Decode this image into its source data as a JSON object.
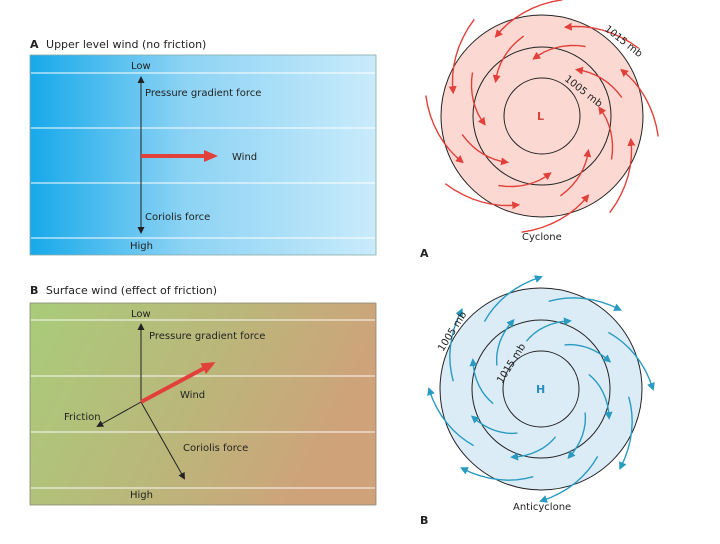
{
  "panelA": {
    "letter": "A",
    "title": "Upper level wind (no friction)",
    "low": "Low",
    "high": "High",
    "pgf": "Pressure gradient force",
    "wind": "Wind",
    "coriolis": "Coriolis force"
  },
  "panelB": {
    "letter": "B",
    "title": "Surface wind (effect of friction)",
    "low": "Low",
    "high": "High",
    "pgf": "Pressure gradient force",
    "wind": "Wind",
    "friction": "Friction",
    "coriolis": "Coriolis force"
  },
  "cyclone": {
    "outer_label": "1015 mb",
    "inner_label": "1005 mb",
    "center": "L",
    "name": "Cyclone",
    "letter": "A"
  },
  "anticyclone": {
    "outer_label": "1005 mb",
    "inner_label": "1015 mb",
    "center": "H",
    "name": "Anticyclone",
    "letter": "B"
  },
  "colors": {
    "red_arrow": "#e2403a",
    "blue_arrow": "#2a9bc0",
    "cyclone_fill": "#fbd9d2",
    "anticyclone_fill": "#dcecf7",
    "label_accent": "#d6453e",
    "h_accent": "#2a8fc0"
  }
}
